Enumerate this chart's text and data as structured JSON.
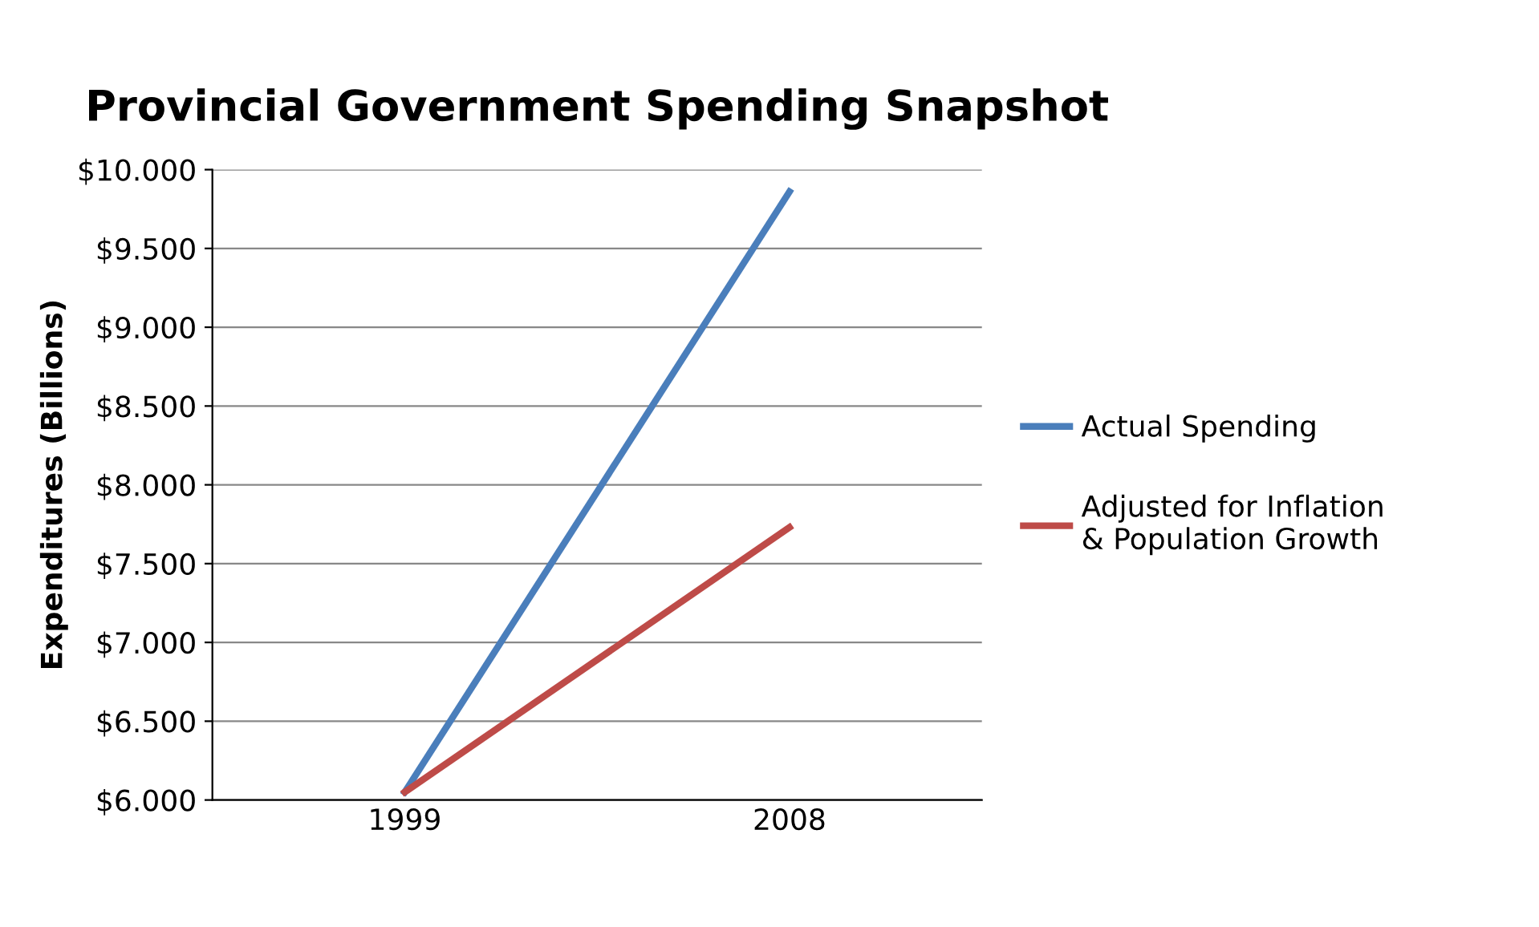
{
  "chart_data": {
    "type": "line",
    "title": "Provincial Government Spending Snapshot",
    "ylabel": "Expenditures (Billions)",
    "categories": [
      "1999",
      "2008"
    ],
    "series": [
      {
        "name": "Actual Spending",
        "color": "#4a7ebb",
        "values": [
          6.05,
          9.86
        ]
      },
      {
        "name": "Adjusted for Inflation\n& Population Growth",
        "color": "#be4b48",
        "values": [
          6.05,
          7.73
        ]
      }
    ],
    "ylim": [
      6,
      10
    ],
    "yticks": [
      {
        "value": 6,
        "label": "$6.000"
      },
      {
        "value": 6.5,
        "label": "$6.500"
      },
      {
        "value": 7,
        "label": "$7.000"
      },
      {
        "value": 7.5,
        "label": "$7.500"
      },
      {
        "value": 8,
        "label": "$8.000"
      },
      {
        "value": 8.5,
        "label": "$8.500"
      },
      {
        "value": 9,
        "label": "$9.000"
      },
      {
        "value": 9.5,
        "label": "$9.500"
      },
      {
        "value": 10,
        "label": "$10.000"
      }
    ],
    "grid": "y",
    "legend": "right",
    "marker": "none",
    "line_style": "solid"
  }
}
